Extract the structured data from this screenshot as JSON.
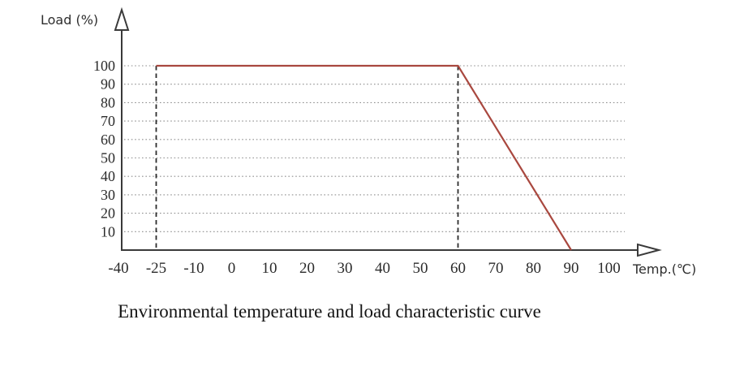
{
  "chart_data": {
    "type": "line",
    "title": "Environmental temperature and load characteristic curve",
    "xlabel": "Temp.(℃)",
    "ylabel": "Load (%)",
    "x_tick_labels": [
      "-40",
      "-25",
      "-10",
      "0",
      "10",
      "20",
      "30",
      "40",
      "50",
      "60",
      "70",
      "80",
      "90",
      "100"
    ],
    "x_tick_values": [
      -40,
      -25,
      -10,
      0,
      10,
      20,
      30,
      40,
      50,
      60,
      70,
      80,
      90,
      100
    ],
    "y_ticks": [
      10,
      20,
      30,
      40,
      50,
      60,
      70,
      80,
      90,
      100
    ],
    "ylim": [
      0,
      100
    ],
    "grid": "horizontal-dotted",
    "grid_color": "#8f8f8f",
    "axis_color": "#3a3a3a",
    "series": [
      {
        "name": "load-vs-temperature",
        "color": "#a9483f",
        "points": [
          [
            -25,
            100
          ],
          [
            60,
            100
          ],
          [
            90,
            0
          ]
        ]
      }
    ],
    "guide_lines": {
      "style": "dashed-vertical",
      "x_values": [
        -25,
        60
      ],
      "color": "#2b2b2b"
    }
  }
}
